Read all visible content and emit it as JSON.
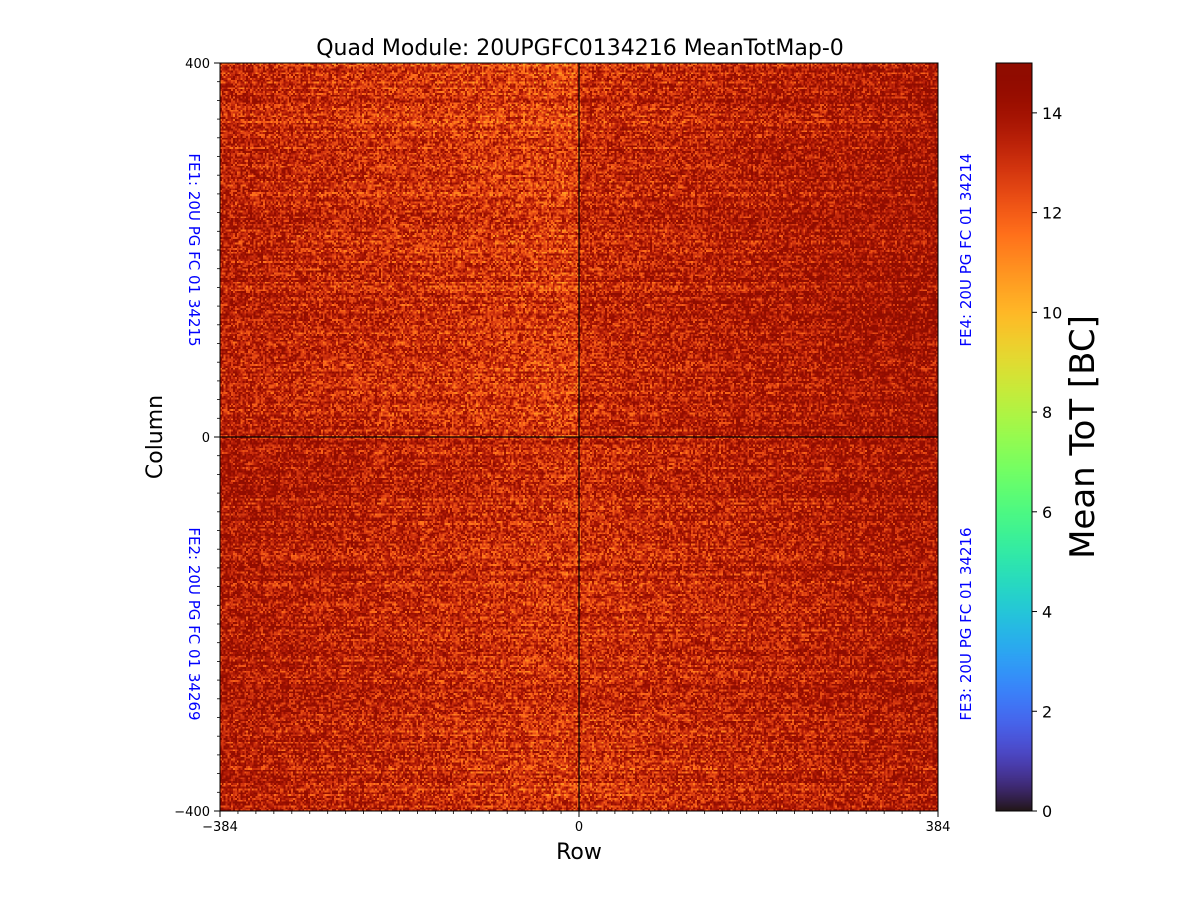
{
  "chart_data": {
    "type": "heatmap",
    "title": "Quad Module: 20UPGFC0134216 MeanTotMap-0",
    "xlabel": "Row",
    "ylabel": "Column",
    "xlim": [
      -384,
      384
    ],
    "ylim": [
      -400,
      400
    ],
    "x_ticks": [
      -384,
      0,
      384
    ],
    "x_tick_labels": [
      "−384",
      "0",
      "384"
    ],
    "y_ticks": [
      400,
      0,
      -400
    ],
    "y_tick_labels": [
      "400",
      "0",
      "−400"
    ],
    "colorbar": {
      "label": "Mean ToT [BC]",
      "range": [
        0,
        15
      ],
      "ticks": [
        0,
        2,
        4,
        6,
        8,
        10,
        12,
        14
      ],
      "tick_labels": [
        "0",
        "2",
        "4",
        "6",
        "8",
        "10",
        "12",
        "14"
      ],
      "colormap": "turbo"
    },
    "front_ends": [
      {
        "id": "FE1",
        "label": "FE1: 20U PG FC 01 34215",
        "quadrant": "top-left",
        "mean_tot": 13.2
      },
      {
        "id": "FE4",
        "label": "FE4: 20U PG FC 01 34214",
        "quadrant": "top-right",
        "mean_tot": 13.8
      },
      {
        "id": "FE2",
        "label": "FE2: 20U PG FC 01 34269",
        "quadrant": "bottom-left",
        "mean_tot": 13.3
      },
      {
        "id": "FE3",
        "label": "FE3: 20U PG FC 01 34216",
        "quadrant": "bottom-right",
        "mean_tot": 13.4
      }
    ],
    "chip_divider_value": 0,
    "fe_label_color": "#0000ff"
  }
}
